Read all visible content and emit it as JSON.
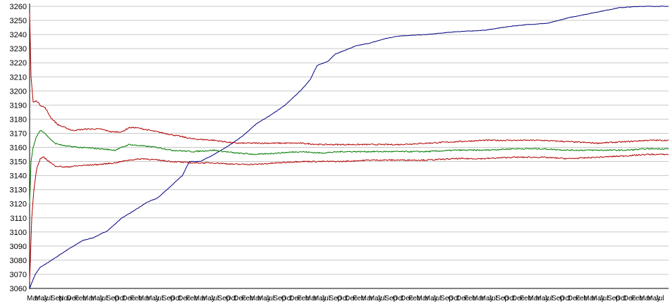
{
  "chart_data": {
    "type": "line",
    "title": "",
    "xlabel": "",
    "ylabel": "",
    "ylim": [
      3060,
      3260
    ],
    "y_ticks": [
      3060,
      3070,
      3080,
      3090,
      3100,
      3110,
      3120,
      3130,
      3140,
      3150,
      3160,
      3170,
      3180,
      3190,
      3200,
      3210,
      3220,
      3230,
      3240,
      3250,
      3260
    ],
    "grid": "horizontal",
    "x_tick_labels": [
      "Mar",
      "May",
      "Jul",
      "Sep",
      "Nov",
      "Dec",
      "Feb",
      "Mar",
      "May",
      "Jul",
      "Sep",
      "Oct",
      "Dec",
      "Feb",
      "Mar",
      "May",
      "Jul",
      "Sep",
      "Oct",
      "Dec",
      "Feb",
      "Mar",
      "May",
      "Jul",
      "Sep",
      "Oct",
      "Dec",
      "Feb",
      "Mar",
      "May",
      "Jul",
      "Sep",
      "Oct",
      "Dec",
      "Feb",
      "Mar",
      "May",
      "Jul",
      "Sep",
      "Oct",
      "Dec",
      "Feb",
      "Mar",
      "May",
      "Jul",
      "Sep",
      "Oct",
      "Dec",
      "Feb",
      "Mar",
      "May",
      "Jul",
      "Sep",
      "Oct",
      "Dec",
      "Feb",
      "Mar",
      "May",
      "Jul",
      "Sep",
      "Oct",
      "Dec",
      "Feb",
      "Mar",
      "May",
      "Jul",
      "Sep",
      "Oct",
      "Dec",
      "Feb",
      "Mar",
      "May",
      "Jul",
      "Sep",
      "Oct",
      "Dec",
      "Feb",
      "Mar",
      "May",
      "Jul"
    ],
    "x_count": 900,
    "series": [
      {
        "color": "#000080",
        "keypoints": [
          [
            0,
            3060
          ],
          [
            3,
            3064
          ],
          [
            8,
            3070
          ],
          [
            15,
            3075
          ],
          [
            25,
            3078
          ],
          [
            40,
            3083
          ],
          [
            55,
            3088
          ],
          [
            75,
            3094
          ],
          [
            90,
            3096
          ],
          [
            110,
            3101
          ],
          [
            130,
            3110
          ],
          [
            150,
            3116
          ],
          [
            165,
            3121
          ],
          [
            180,
            3124
          ],
          [
            200,
            3133
          ],
          [
            215,
            3140
          ],
          [
            225,
            3150
          ],
          [
            240,
            3150
          ],
          [
            260,
            3155
          ],
          [
            280,
            3161
          ],
          [
            300,
            3168
          ],
          [
            320,
            3177
          ],
          [
            340,
            3183
          ],
          [
            360,
            3190
          ],
          [
            375,
            3197
          ],
          [
            385,
            3202
          ],
          [
            395,
            3208
          ],
          [
            405,
            3218
          ],
          [
            420,
            3221
          ],
          [
            430,
            3226
          ],
          [
            445,
            3229
          ],
          [
            460,
            3232
          ],
          [
            480,
            3234
          ],
          [
            500,
            3237
          ],
          [
            520,
            3239
          ],
          [
            560,
            3240
          ],
          [
            600,
            3242
          ],
          [
            640,
            3243
          ],
          [
            680,
            3246
          ],
          [
            700,
            3247
          ],
          [
            730,
            3248
          ],
          [
            760,
            3252
          ],
          [
            790,
            3255
          ],
          [
            810,
            3257
          ],
          [
            830,
            3259
          ],
          [
            860,
            3260
          ],
          [
            900,
            3260
          ]
        ]
      },
      {
        "color": "#b00000",
        "keypoints": [
          [
            0,
            3255
          ],
          [
            2,
            3210
          ],
          [
            5,
            3192
          ],
          [
            10,
            3193
          ],
          [
            15,
            3190
          ],
          [
            22,
            3188
          ],
          [
            30,
            3181
          ],
          [
            40,
            3176
          ],
          [
            60,
            3172
          ],
          [
            80,
            3173
          ],
          [
            100,
            3173
          ],
          [
            115,
            3171
          ],
          [
            130,
            3171
          ],
          [
            140,
            3174
          ],
          [
            150,
            3174
          ],
          [
            170,
            3172
          ],
          [
            190,
            3170
          ],
          [
            210,
            3168
          ],
          [
            230,
            3166
          ],
          [
            260,
            3165
          ],
          [
            290,
            3163
          ],
          [
            320,
            3163
          ],
          [
            350,
            3163
          ],
          [
            380,
            3163
          ],
          [
            410,
            3162
          ],
          [
            440,
            3162
          ],
          [
            480,
            3162
          ],
          [
            520,
            3162
          ],
          [
            560,
            3163
          ],
          [
            600,
            3164
          ],
          [
            640,
            3165
          ],
          [
            680,
            3165
          ],
          [
            720,
            3165
          ],
          [
            760,
            3164
          ],
          [
            800,
            3163
          ],
          [
            840,
            3164
          ],
          [
            870,
            3165
          ],
          [
            900,
            3165
          ]
        ]
      },
      {
        "color": "#007a00",
        "keypoints": [
          [
            0,
            3120
          ],
          [
            2,
            3150
          ],
          [
            5,
            3160
          ],
          [
            10,
            3168
          ],
          [
            15,
            3172
          ],
          [
            20,
            3171
          ],
          [
            25,
            3168
          ],
          [
            35,
            3163
          ],
          [
            50,
            3161
          ],
          [
            70,
            3160
          ],
          [
            100,
            3159
          ],
          [
            120,
            3158
          ],
          [
            140,
            3162
          ],
          [
            160,
            3161
          ],
          [
            180,
            3160
          ],
          [
            200,
            3158
          ],
          [
            230,
            3157
          ],
          [
            260,
            3158
          ],
          [
            290,
            3156
          ],
          [
            320,
            3155
          ],
          [
            350,
            3156
          ],
          [
            380,
            3157
          ],
          [
            410,
            3156
          ],
          [
            440,
            3157
          ],
          [
            480,
            3157
          ],
          [
            520,
            3157
          ],
          [
            560,
            3157
          ],
          [
            600,
            3158
          ],
          [
            640,
            3158
          ],
          [
            680,
            3159
          ],
          [
            720,
            3159
          ],
          [
            760,
            3158
          ],
          [
            800,
            3158
          ],
          [
            840,
            3158
          ],
          [
            870,
            3159
          ],
          [
            900,
            3159
          ]
        ]
      },
      {
        "color": "#b00000",
        "keypoints": [
          [
            0,
            3065
          ],
          [
            3,
            3110
          ],
          [
            6,
            3130
          ],
          [
            10,
            3145
          ],
          [
            15,
            3152
          ],
          [
            20,
            3153
          ],
          [
            25,
            3151
          ],
          [
            35,
            3147
          ],
          [
            50,
            3146
          ],
          [
            70,
            3147
          ],
          [
            100,
            3148
          ],
          [
            120,
            3149
          ],
          [
            140,
            3151
          ],
          [
            160,
            3152
          ],
          [
            180,
            3151
          ],
          [
            200,
            3150
          ],
          [
            230,
            3149
          ],
          [
            260,
            3149
          ],
          [
            290,
            3148
          ],
          [
            320,
            3148
          ],
          [
            350,
            3149
          ],
          [
            380,
            3150
          ],
          [
            410,
            3150
          ],
          [
            440,
            3150
          ],
          [
            480,
            3151
          ],
          [
            520,
            3151
          ],
          [
            560,
            3151
          ],
          [
            600,
            3152
          ],
          [
            640,
            3152
          ],
          [
            680,
            3153
          ],
          [
            720,
            3153
          ],
          [
            760,
            3152
          ],
          [
            800,
            3153
          ],
          [
            840,
            3154
          ],
          [
            870,
            3155
          ],
          [
            900,
            3155
          ]
        ]
      }
    ]
  }
}
